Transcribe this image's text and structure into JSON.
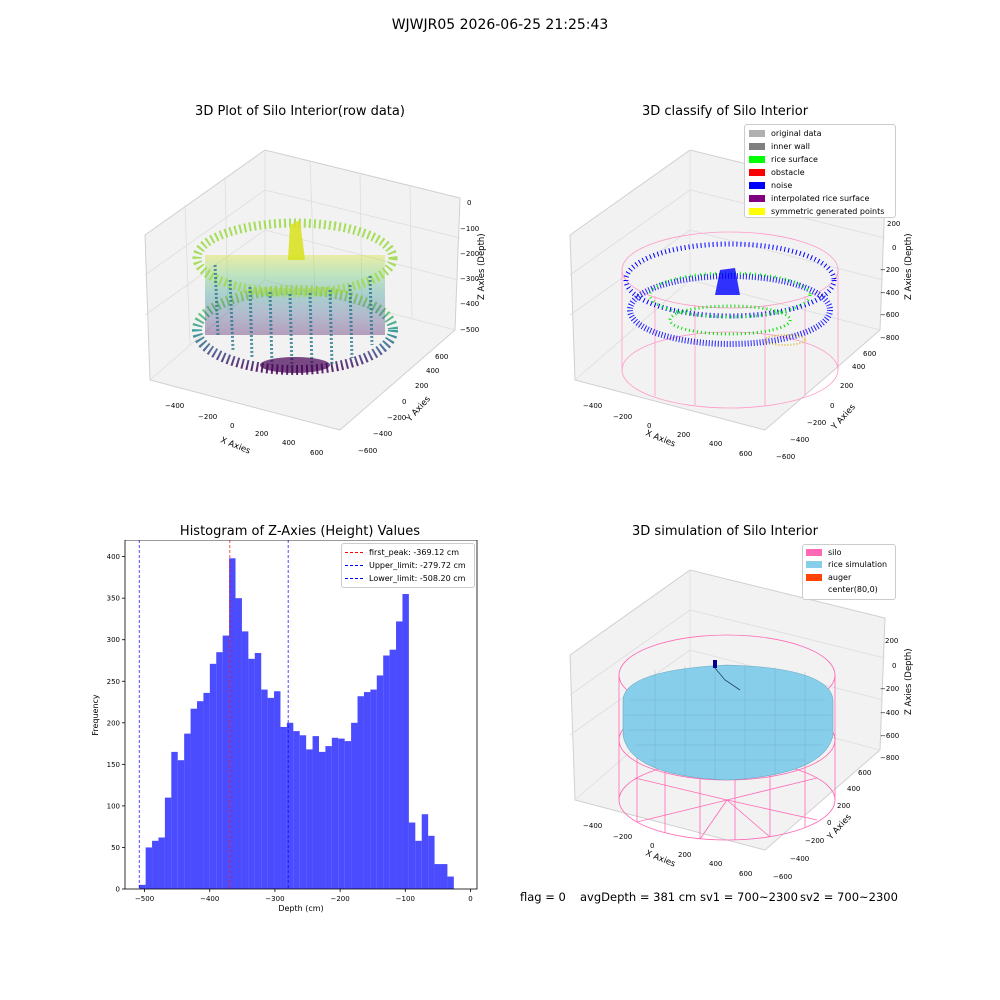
{
  "suptitle": "WJWJR05 2026-06-25 21:25:43",
  "panels": {
    "raw": {
      "title": "3D Plot of Silo Interior(row data)",
      "xlabel": "X Axies",
      "ylabel": "Y Axies",
      "zlabel": "Z Axies (Depth)",
      "xticks": [
        "−400",
        "−200",
        "0",
        "200",
        "400",
        "600"
      ],
      "yticks": [
        "−600",
        "−400",
        "−200",
        "0",
        "200",
        "400",
        "600"
      ],
      "zticks": [
        "0",
        "−100",
        "−200",
        "−300",
        "−400",
        "−500"
      ]
    },
    "classify": {
      "title": "3D classify of Silo Interior",
      "xlabel": "X Axies",
      "ylabel": "Y Axies",
      "zlabel": "Z Axies (Depth)",
      "xticks": [
        "−400",
        "−200",
        "0",
        "200",
        "400",
        "600"
      ],
      "yticks": [
        "−600",
        "−400",
        "−200",
        "0",
        "200",
        "400",
        "600"
      ],
      "zticks": [
        "200",
        "0",
        "−200",
        "−400",
        "−600",
        "−800"
      ],
      "legend": [
        {
          "label": "original data",
          "color": "#b0b0b0"
        },
        {
          "label": "inner wall",
          "color": "#808080"
        },
        {
          "label": "rice surface",
          "color": "#00ff00"
        },
        {
          "label": "obstacle",
          "color": "#ff0000"
        },
        {
          "label": "noise",
          "color": "#0000ff"
        },
        {
          "label": "interpolated rice surface",
          "color": "#800080"
        },
        {
          "label": "symmetric generated points",
          "color": "#ffff00"
        }
      ]
    },
    "simulation": {
      "title": "3D simulation of Silo Interior",
      "xlabel": "X Axies",
      "ylabel": "Y Axies",
      "zlabel": "Z Axies (Depth)",
      "xticks": [
        "−400",
        "−200",
        "0",
        "200",
        "400",
        "600"
      ],
      "yticks": [
        "−600",
        "−400",
        "−200",
        "0",
        "200",
        "400",
        "600"
      ],
      "zticks": [
        "200",
        "0",
        "−200",
        "−400",
        "−600",
        "−800"
      ],
      "legend": [
        {
          "label": "silo",
          "color": "#ff69b4"
        },
        {
          "label": "rice simulation",
          "color": "#87ceeb"
        },
        {
          "label": "auger",
          "color": "#ff4500"
        },
        {
          "label": "center(80,0)",
          "color": ""
        }
      ]
    }
  },
  "chart_data": {
    "type": "bar",
    "title": "Histogram of Z-Axies (Height) Values",
    "xlabel": "Depth (cm)",
    "ylabel": "Frequency",
    "xlim": [
      -530,
      10
    ],
    "ylim": [
      0,
      420
    ],
    "xticks": [
      -500,
      -400,
      -300,
      -200,
      -100,
      0
    ],
    "yticks": [
      0,
      50,
      100,
      150,
      200,
      250,
      300,
      350,
      400
    ],
    "bar_color": "#0000ff",
    "bin_start": -508.2,
    "bin_width": 9.85,
    "values": [
      5,
      50,
      58,
      62,
      110,
      165,
      155,
      187,
      217,
      226,
      236,
      271,
      285,
      305,
      398,
      350,
      310,
      277,
      284,
      240,
      230,
      238,
      195,
      200,
      190,
      185,
      168,
      184,
      165,
      172,
      182,
      181,
      178,
      200,
      232,
      237,
      240,
      257,
      281,
      288,
      322,
      355,
      80,
      58,
      90,
      64,
      30,
      30,
      15
    ],
    "lines": [
      {
        "label": "first_peak: -369.12 cm",
        "x": -369.12,
        "color": "#ff0000"
      },
      {
        "label": "Upper_limit: -279.72 cm",
        "x": -279.72,
        "color": "#0000ff"
      },
      {
        "label": "Lower_limit: -508.20 cm",
        "x": -508.2,
        "color": "#0000ff"
      }
    ],
    "tick_labels": [
      "−500",
      "−400",
      "−300",
      "−200",
      "−100",
      "0"
    ]
  },
  "footer": {
    "flag": "flag = 0",
    "avg": "avgDepth = 381 cm",
    "sv1": "sv1 = 700~2300",
    "sv2": "sv2 = 700~2300"
  }
}
